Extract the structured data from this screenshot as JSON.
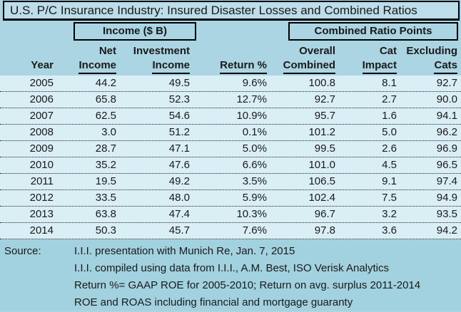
{
  "title": "U.S. P/C Insurance Industry: Insured Disaster Losses and Combined Ratios",
  "table": {
    "group_headers": [
      {
        "label": "Income ($ B)"
      },
      {
        "label": "Combined Ratio Points"
      }
    ],
    "columns": [
      {
        "line1": "",
        "line2": "Year",
        "underline": false
      },
      {
        "line1": "Net",
        "line2": "Income",
        "underline": true
      },
      {
        "line1": "Investment",
        "line2": "Income",
        "underline": true
      },
      {
        "line1": "",
        "line2": "Return %",
        "underline": true
      },
      {
        "line1": "Overall",
        "line2": "Combined",
        "underline": true
      },
      {
        "line1": "Cat",
        "line2": "Impact",
        "underline": true
      },
      {
        "line1": "Excluding",
        "line2": "Cats",
        "underline": true
      }
    ],
    "rows": [
      [
        "2005",
        "44.2",
        "49.5",
        "9.6%",
        "100.8",
        "8.1",
        "92.7"
      ],
      [
        "2006",
        "65.8",
        "52.3",
        "12.7%",
        "92.7",
        "2.7",
        "90.0"
      ],
      [
        "2007",
        "62.5",
        "54.6",
        "10.9%",
        "95.7",
        "1.6",
        "94.1"
      ],
      [
        "2008",
        "3.0",
        "51.2",
        "0.1%",
        "101.2",
        "5.0",
        "96.2"
      ],
      [
        "2009",
        "28.7",
        "47.1",
        "5.0%",
        "99.5",
        "2.6",
        "96.9"
      ],
      [
        "2010",
        "35.2",
        "47.6",
        "6.6%",
        "101.0",
        "4.5",
        "96.5"
      ],
      [
        "2011",
        "19.5",
        "49.2",
        "3.5%",
        "106.5",
        "9.1",
        "97.4"
      ],
      [
        "2012",
        "33.5",
        "48.0",
        "5.9%",
        "102.4",
        "7.5",
        "94.9"
      ],
      [
        "2013",
        "63.8",
        "47.4",
        "10.3%",
        "96.7",
        "3.2",
        "93.5"
      ],
      [
        "2014",
        "50.3",
        "45.7",
        "7.6%",
        "97.8",
        "3.6",
        "94.2"
      ]
    ]
  },
  "source": {
    "label": "Source:",
    "lines": [
      "I.I.I. presentation with Munich Re, Jan. 7, 2015",
      "I.I.I. compiled using data from I.I.I., A.M. Best, ISO Verisk Analytics",
      "Return %= GAAP ROE for 2005-2010; Return on avg. surplus 2011-2014",
      "ROE and ROAS including financial and mortgage guaranty"
    ]
  },
  "colors": {
    "title_bg": "#bcdde9",
    "header_bg": "#abd5e3",
    "row_bg": "#daeef5",
    "source_bg": "#a2d1df",
    "border": "#000000",
    "text": "#1a1a1a"
  },
  "chart_data": {
    "type": "table",
    "title": "U.S. P/C Insurance Industry: Insured Disaster Losses and Combined Ratios",
    "column_groups": [
      "Income ($ B)",
      "Combined Ratio Points"
    ],
    "columns": [
      "Year",
      "Net Income",
      "Investment Income",
      "Return %",
      "Overall Combined",
      "Cat Impact",
      "Excluding Cats"
    ],
    "rows": [
      [
        2005,
        44.2,
        49.5,
        "9.6%",
        100.8,
        8.1,
        92.7
      ],
      [
        2006,
        65.8,
        52.3,
        "12.7%",
        92.7,
        2.7,
        90.0
      ],
      [
        2007,
        62.5,
        54.6,
        "10.9%",
        95.7,
        1.6,
        94.1
      ],
      [
        2008,
        3.0,
        51.2,
        "0.1%",
        101.2,
        5.0,
        96.2
      ],
      [
        2009,
        28.7,
        47.1,
        "5.0%",
        99.5,
        2.6,
        96.9
      ],
      [
        2010,
        35.2,
        47.6,
        "6.6%",
        101.0,
        4.5,
        96.5
      ],
      [
        2011,
        19.5,
        49.2,
        "3.5%",
        106.5,
        9.1,
        97.4
      ],
      [
        2012,
        33.5,
        48.0,
        "5.9%",
        102.4,
        7.5,
        94.9
      ],
      [
        2013,
        63.8,
        47.4,
        "10.3%",
        96.7,
        3.2,
        93.5
      ],
      [
        2014,
        50.3,
        45.7,
        "7.6%",
        97.8,
        3.6,
        94.2
      ]
    ]
  }
}
